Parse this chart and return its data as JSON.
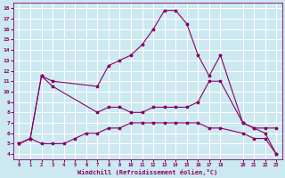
{
  "xlabel": "Windchill (Refroidissement éolien,°C)",
  "bg_color": "#cce8f0",
  "grid_color": "#ffffff",
  "line_color": "#880066",
  "xlim": [
    -0.5,
    23.5
  ],
  "ylim": [
    3.5,
    18.5
  ],
  "xticks": [
    0,
    1,
    2,
    3,
    4,
    5,
    6,
    7,
    8,
    9,
    10,
    11,
    12,
    13,
    14,
    15,
    16,
    17,
    18,
    20,
    21,
    22,
    23
  ],
  "yticks": [
    4,
    5,
    6,
    7,
    8,
    9,
    10,
    11,
    12,
    13,
    14,
    15,
    16,
    17,
    18
  ],
  "curves": [
    {
      "x": [
        0,
        1,
        2,
        3,
        7,
        8,
        9,
        10,
        11,
        12,
        13,
        14,
        15,
        16,
        17,
        18,
        20,
        21,
        22,
        23
      ],
      "y": [
        5,
        5.5,
        11.5,
        11,
        10.5,
        12.5,
        13,
        13.5,
        14.5,
        16,
        17.8,
        17.8,
        16.5,
        13.5,
        11.5,
        13.5,
        7,
        6.5,
        6.5,
        6.5
      ]
    },
    {
      "x": [
        0,
        1,
        2,
        3,
        7,
        8,
        9,
        10,
        11,
        12,
        13,
        14,
        15,
        16,
        17,
        18,
        20,
        21,
        22,
        23
      ],
      "y": [
        5,
        5.5,
        11.5,
        10.5,
        8,
        8.5,
        8.5,
        8,
        8,
        8.5,
        8.5,
        8.5,
        8.5,
        9,
        11,
        11,
        7,
        6.5,
        6,
        4
      ]
    },
    {
      "x": [
        0,
        1,
        2,
        3,
        4,
        5,
        6,
        7,
        8,
        9,
        10,
        11,
        12,
        13,
        14,
        15,
        16,
        17,
        18,
        20,
        21,
        22,
        23
      ],
      "y": [
        5,
        5.5,
        5,
        5,
        5,
        5.5,
        6,
        6,
        6.5,
        6.5,
        7,
        7,
        7,
        7,
        7,
        7,
        7,
        6.5,
        6.5,
        6,
        5.5,
        5.5,
        4
      ]
    }
  ]
}
